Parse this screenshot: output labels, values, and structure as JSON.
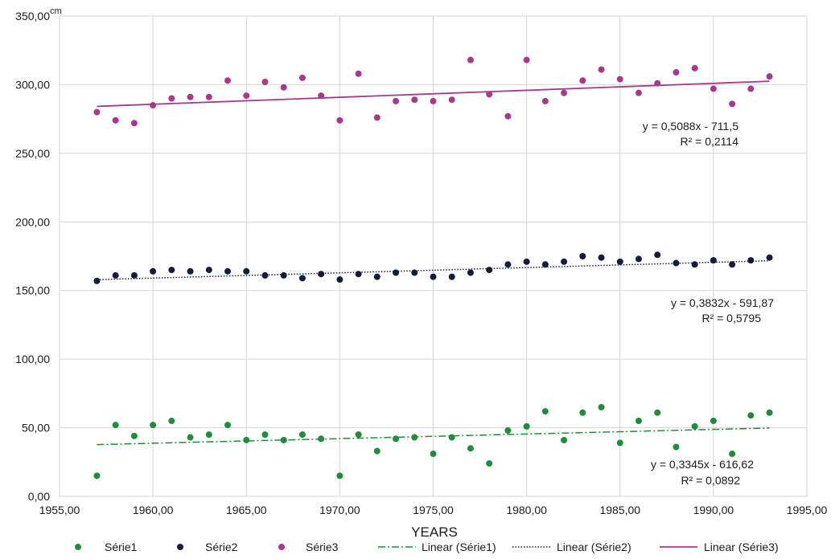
{
  "chart_data": {
    "type": "scatter",
    "unit_label": "cm",
    "xlabel": "YEARS",
    "ylabel": "",
    "xlim": [
      1955,
      1995
    ],
    "ylim": [
      0,
      350
    ],
    "x_ticks": [
      1955,
      1960,
      1965,
      1970,
      1975,
      1980,
      1985,
      1990,
      1995
    ],
    "x_tick_labels": [
      "1955,00",
      "1960,00",
      "1965,00",
      "1970,00",
      "1975,00",
      "1980,00",
      "1985,00",
      "1990,00",
      "1995,00"
    ],
    "y_ticks": [
      0,
      50,
      100,
      150,
      200,
      250,
      300,
      350
    ],
    "y_tick_labels": [
      "0,00",
      "50,00",
      "100,00",
      "150,00",
      "200,00",
      "250,00",
      "300,00",
      "350,00"
    ],
    "grid": true,
    "legend_position": "bottom",
    "x": [
      1957,
      1958,
      1959,
      1960,
      1961,
      1962,
      1963,
      1964,
      1965,
      1966,
      1967,
      1968,
      1969,
      1970,
      1971,
      1972,
      1973,
      1974,
      1975,
      1976,
      1977,
      1978,
      1979,
      1980,
      1981,
      1982,
      1983,
      1984,
      1985,
      1986,
      1987,
      1988,
      1989,
      1990,
      1991,
      1992,
      1993
    ],
    "series": [
      {
        "name": "Série1",
        "color": "#1e8c3a",
        "values": [
          15,
          52,
          44,
          52,
          55,
          43,
          45,
          52,
          41,
          45,
          41,
          45,
          42,
          15,
          45,
          33,
          42,
          43,
          31,
          43,
          35,
          24,
          48,
          51,
          62,
          41,
          61,
          65,
          39,
          55,
          61,
          36,
          51,
          55,
          31,
          59,
          61
        ]
      },
      {
        "name": "Série2",
        "color": "#141c3c",
        "values": [
          157,
          161,
          161,
          164,
          165,
          164,
          165,
          164,
          164,
          161,
          161,
          159,
          162,
          158,
          162,
          160,
          163,
          163,
          160,
          160,
          163,
          165,
          169,
          171,
          169,
          171,
          175,
          174,
          171,
          173,
          176,
          170,
          169,
          172,
          169,
          172,
          174
        ]
      },
      {
        "name": "Série3",
        "color": "#a6398c",
        "values": [
          280,
          274,
          272,
          285,
          290,
          291,
          291,
          303,
          292,
          302,
          298,
          305,
          292,
          274,
          308,
          276,
          288,
          289,
          288,
          289,
          318,
          293,
          277,
          318,
          288,
          294,
          303,
          311,
          304,
          294,
          301,
          309,
          312,
          297,
          286,
          297,
          306
        ]
      }
    ],
    "trendlines": [
      {
        "name": "Linear (Série1)",
        "series": "Série1",
        "color": "#1e8c3a",
        "style": "dash-dot",
        "x_range": [
          1957,
          1993
        ],
        "y_range": [
          37.7,
          49.8
        ],
        "equation": "y = 0,3345x - 616,62",
        "r2": "R² = 0,0892"
      },
      {
        "name": "Linear (Série2)",
        "series": "Série2",
        "color": "#141c3c",
        "style": "dotted",
        "x_range": [
          1957,
          1993
        ],
        "y_range": [
          157.9,
          171.7
        ],
        "equation": "y = 0,3832x - 591,87",
        "r2": "R² = 0,5795"
      },
      {
        "name": "Linear (Série3)",
        "series": "Série3",
        "color": "#a6398c",
        "style": "solid",
        "x_range": [
          1957,
          1993
        ],
        "y_range": [
          284.2,
          302.5
        ],
        "equation": "y = 0,5088x - 711,5",
        "r2": "R² = 0,2114"
      }
    ]
  }
}
